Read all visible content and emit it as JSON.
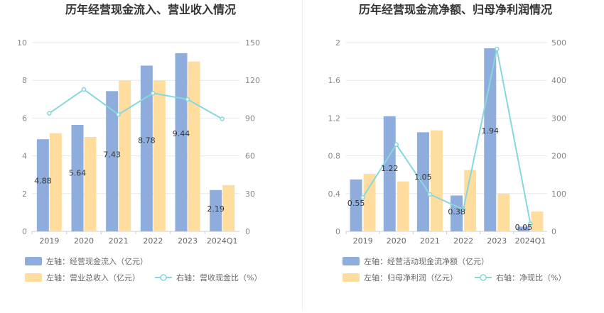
{
  "chart_data": [
    {
      "type": "bar",
      "title": "历年经营现金流入、营业收入情况",
      "categories": [
        "2019",
        "2020",
        "2021",
        "2022",
        "2023",
        "2024Q1"
      ],
      "left_axis": {
        "ylim": [
          0,
          10
        ],
        "ticks": [
          "0",
          "2",
          "4",
          "6",
          "8",
          "10"
        ]
      },
      "right_axis": {
        "ylim": [
          0,
          150
        ],
        "ticks": [
          "0",
          "30",
          "60",
          "90",
          "120",
          "150"
        ]
      },
      "series": [
        {
          "name": "左轴：经营现金流入（亿元）",
          "axis": "left",
          "kind": "bar",
          "color": "#8eaddc",
          "values": [
            4.88,
            5.64,
            7.43,
            8.78,
            9.44,
            2.19
          ],
          "labels": [
            "4.88",
            "5.64",
            "7.43",
            "8.78",
            "9.44",
            "2.19"
          ]
        },
        {
          "name": "左轴：营业总收入（亿元）",
          "axis": "left",
          "kind": "bar",
          "color": "#ffdd9f",
          "values": [
            5.2,
            5.0,
            8.0,
            8.0,
            9.0,
            2.45
          ]
        },
        {
          "name": "右轴：营收现金比（%）",
          "axis": "right",
          "kind": "line",
          "color": "#86d8dc",
          "values": [
            93.8,
            112.8,
            92.9,
            109.8,
            104.9,
            89.4
          ]
        }
      ],
      "grid": true,
      "legend_position": "bottom-left"
    },
    {
      "type": "bar",
      "title": "历年经营现金流净额、归母净利润情况",
      "categories": [
        "2019",
        "2020",
        "2021",
        "2022",
        "2023",
        "2024Q1"
      ],
      "left_axis": {
        "ylim": [
          0,
          2
        ],
        "ticks": [
          "0",
          "0.4",
          "0.8",
          "1.2",
          "1.6",
          "2"
        ]
      },
      "right_axis": {
        "ylim": [
          0,
          500
        ],
        "ticks": [
          "0",
          "100",
          "200",
          "300",
          "400",
          "500"
        ]
      },
      "series": [
        {
          "name": "左轴：经营活动现金流净额（亿元）",
          "axis": "left",
          "kind": "bar",
          "color": "#8eaddc",
          "values": [
            0.55,
            1.22,
            1.05,
            0.38,
            1.94,
            0.05
          ],
          "labels": [
            "0.55",
            "1.22",
            "1.05",
            "0.38",
            "1.94",
            "0.05"
          ]
        },
        {
          "name": "左轴：归母净利润（亿元）",
          "axis": "left",
          "kind": "bar",
          "color": "#ffdd9f",
          "values": [
            0.61,
            0.53,
            1.07,
            0.65,
            0.4,
            0.21
          ]
        },
        {
          "name": "右轴：净现比（%）",
          "axis": "right",
          "kind": "line",
          "color": "#86d8dc",
          "values": [
            90,
            230,
            98,
            58,
            483,
            20
          ]
        }
      ],
      "grid": true,
      "legend_position": "bottom-left"
    }
  ]
}
